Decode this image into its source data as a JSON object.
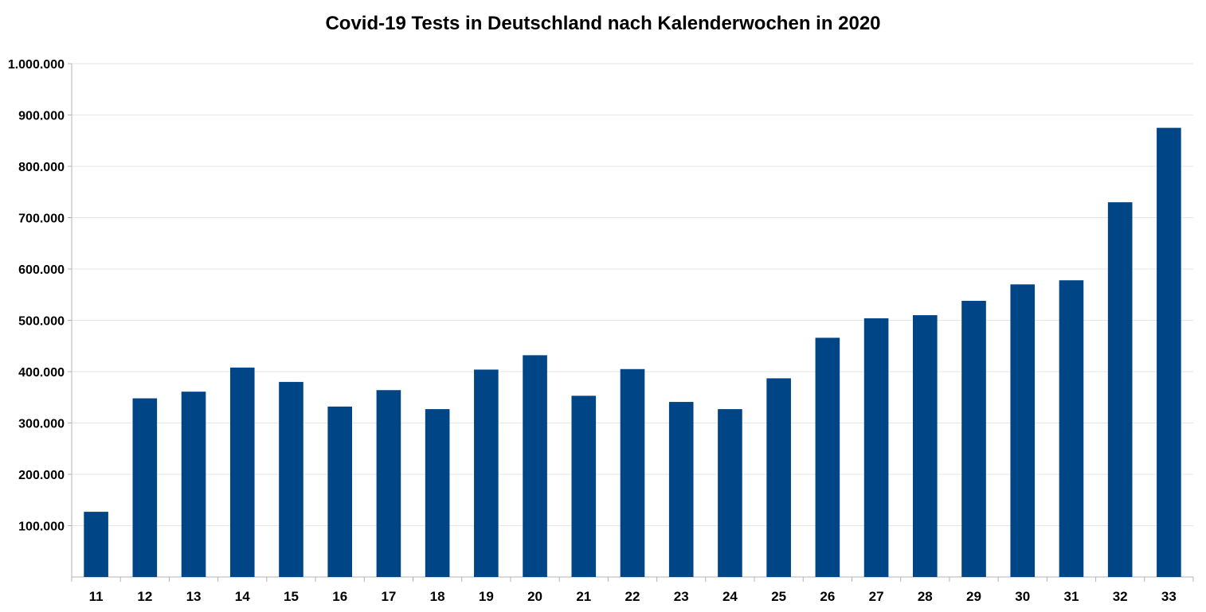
{
  "chart_data": {
    "type": "bar",
    "title": "Covid-19 Tests in Deutschland nach Kalenderwochen in 2020",
    "xlabel": "",
    "ylabel": "",
    "categories": [
      "11",
      "12",
      "13",
      "14",
      "15",
      "16",
      "17",
      "18",
      "19",
      "20",
      "21",
      "22",
      "23",
      "24",
      "25",
      "26",
      "27",
      "28",
      "29",
      "30",
      "31",
      "32",
      "33"
    ],
    "values": [
      127000,
      348000,
      361000,
      408000,
      380000,
      332000,
      364000,
      327000,
      404000,
      432000,
      353000,
      405000,
      341000,
      327000,
      387000,
      466000,
      504000,
      510000,
      538000,
      570000,
      578000,
      730000,
      875000
    ],
    "ylim": [
      0,
      1000000
    ],
    "yticks": [
      100000,
      200000,
      300000,
      400000,
      500000,
      600000,
      700000,
      800000,
      900000,
      1000000
    ],
    "ytick_labels": [
      "100.000",
      "200.000",
      "300.000",
      "400.000",
      "500.000",
      "600.000",
      "700.000",
      "800.000",
      "900.000",
      "1.000.000"
    ],
    "grid": true,
    "legend": "none",
    "bar_color": "#004586"
  }
}
